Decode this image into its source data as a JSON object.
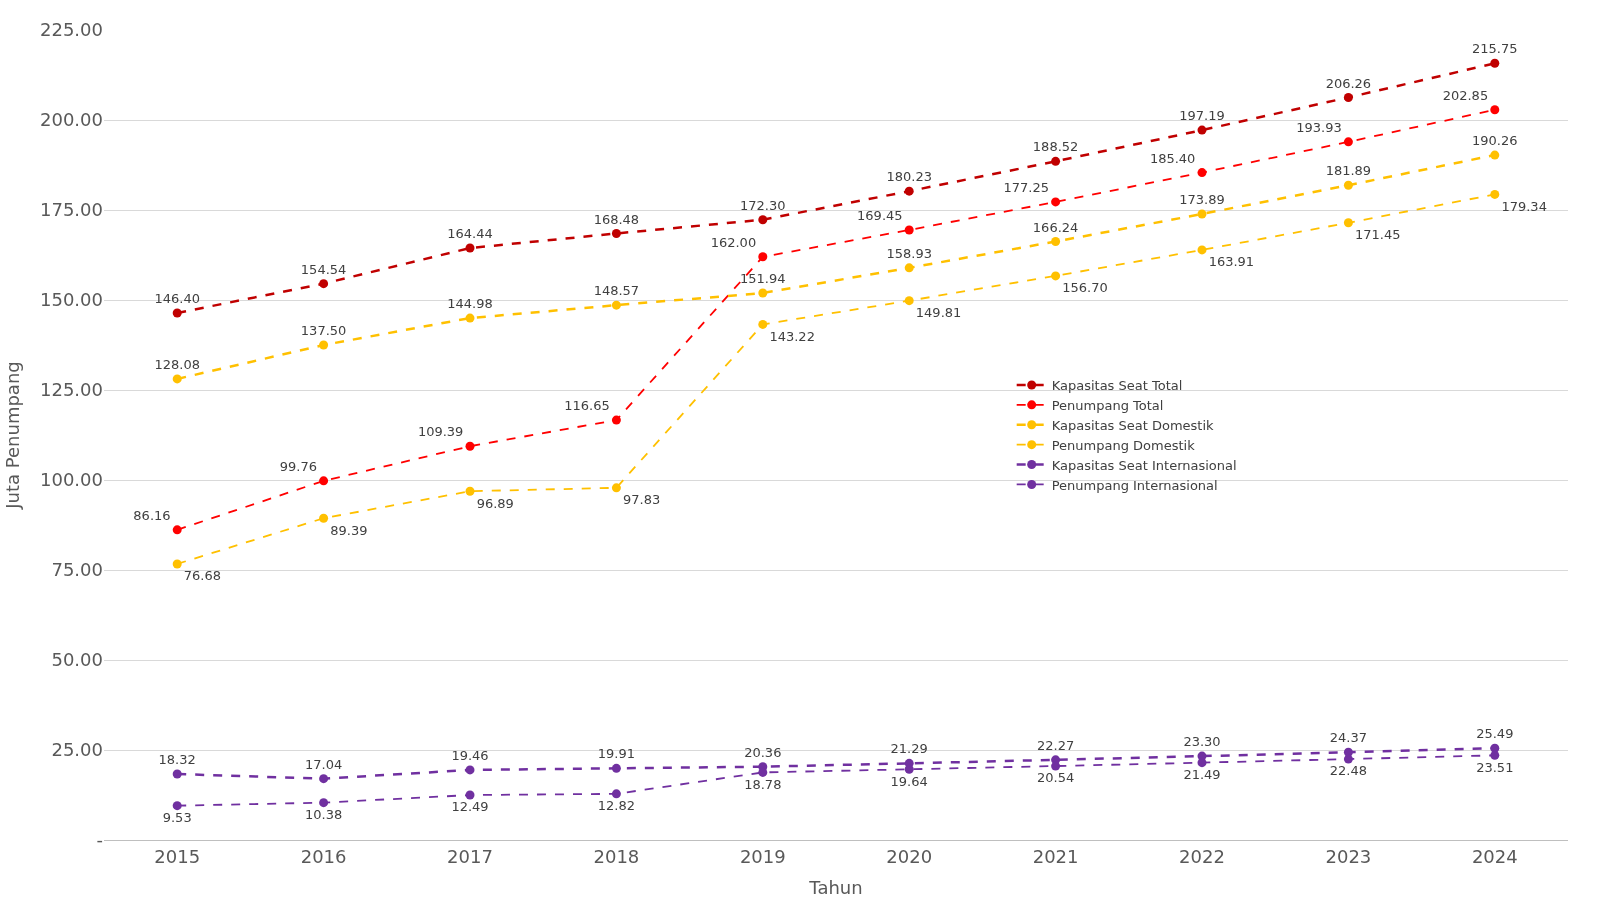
{
  "chart_data": {
    "type": "line",
    "xlabel": "Tahun",
    "ylabel": "Juta Penumpang",
    "categories": [
      "2015",
      "2016",
      "2017",
      "2018",
      "2019",
      "2020",
      "2021",
      "2022",
      "2023",
      "2024"
    ],
    "series": [
      {
        "name": "Kapasitas Seat Total",
        "color": "#c00000",
        "line_style": "dashed",
        "values": [
          146.4,
          154.54,
          164.44,
          168.48,
          172.3,
          180.23,
          188.52,
          197.19,
          206.26,
          215.75
        ],
        "value_labels": [
          "146.40",
          "154.54",
          "164.44",
          "168.48",
          "172.30",
          "180.23",
          "188.52",
          "197.19",
          "206.26",
          "215.75"
        ]
      },
      {
        "name": "Penumpang Total",
        "color": "#ff0000",
        "line_style": "dashed",
        "values": [
          86.16,
          99.76,
          109.39,
          116.65,
          162.0,
          169.45,
          177.25,
          185.4,
          193.93,
          202.85
        ],
        "value_labels": [
          "86.16",
          "99.76",
          "109.39",
          "116.65",
          "162.00",
          "169.45",
          "177.25",
          "185.40",
          "193.93",
          "202.85"
        ]
      },
      {
        "name": "Kapasitas Seat Domestik",
        "color": "#ffc000",
        "line_style": "dashed",
        "values": [
          128.08,
          137.5,
          144.98,
          148.57,
          151.94,
          158.93,
          166.24,
          173.89,
          181.89,
          190.26
        ],
        "value_labels": [
          "128.08",
          "137.50",
          "144.98",
          "148.57",
          "151.94",
          "158.93",
          "166.24",
          "173.89",
          "181.89",
          "190.26"
        ]
      },
      {
        "name": "Penumpang Domestik",
        "color": "#ffc000",
        "line_style": "dashed",
        "values": [
          76.68,
          89.39,
          96.89,
          97.83,
          143.22,
          149.81,
          156.7,
          163.91,
          171.45,
          179.34
        ],
        "value_labels": [
          "76.68",
          "89.39",
          "96.89",
          "97.83",
          "143.22",
          "149.81",
          "156.70",
          "163.91",
          "171.45",
          "179.34"
        ]
      },
      {
        "name": "Kapasitas Seat Internasional",
        "color": "#7030a0",
        "line_style": "dashed",
        "values": [
          18.32,
          17.04,
          19.46,
          19.91,
          20.36,
          21.29,
          22.27,
          23.3,
          24.37,
          25.49
        ],
        "value_labels": [
          "18.32",
          "17.04",
          "19.46",
          "19.91",
          "20.36",
          "21.29",
          "22.27",
          "23.30",
          "24.37",
          "25.49"
        ]
      },
      {
        "name": "Penumpang Internasional",
        "color": "#7030a0",
        "line_style": "dashed",
        "values": [
          9.53,
          10.38,
          12.49,
          12.82,
          18.78,
          19.64,
          20.54,
          21.49,
          22.48,
          23.51
        ],
        "value_labels": [
          "9.53",
          "10.38",
          "12.49",
          "12.82",
          "18.78",
          "19.64",
          "20.54",
          "21.49",
          "22.48",
          "23.51"
        ]
      }
    ],
    "ylim": [
      0,
      225
    ],
    "yticks": [
      {
        "value": 0,
        "label": "-"
      },
      {
        "value": 25,
        "label": "25.00"
      },
      {
        "value": 50,
        "label": "50.00"
      },
      {
        "value": 75,
        "label": "75.00"
      },
      {
        "value": 100,
        "label": "100.00"
      },
      {
        "value": 125,
        "label": "125.00"
      },
      {
        "value": 150,
        "label": "150.00"
      },
      {
        "value": 175,
        "label": "175.00"
      },
      {
        "value": 200,
        "label": "200.00"
      },
      {
        "value": 225,
        "label": "225.00"
      }
    ],
    "grid": "y",
    "legend": "right",
    "marker": "circle"
  }
}
